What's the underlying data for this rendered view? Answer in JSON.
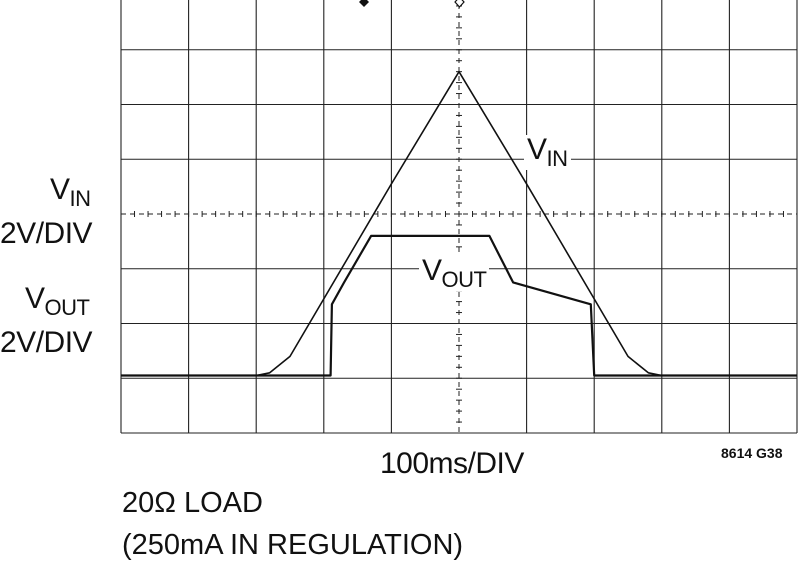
{
  "chart_data": {
    "type": "line",
    "kind": "oscilloscope-trace",
    "grid": {
      "divisions_x": 10,
      "divisions_y": 8,
      "on": true
    },
    "x_axis": {
      "label": "100ms/DIV",
      "unit": "ms",
      "per_div": 100,
      "range": [
        0,
        1000
      ]
    },
    "channels": [
      {
        "name_main": "V",
        "name_sub": "IN",
        "scale": "2V/DIV",
        "ground_div_from_top": 6.95
      },
      {
        "name_main": "V",
        "name_sub": "OUT",
        "scale": "2V/DIV",
        "ground_div_from_top": 6.95
      }
    ],
    "series": [
      {
        "name_main": "V",
        "name_sub": "IN",
        "x_ms": [
          0,
          200,
          220,
          250,
          300,
          350,
          400,
          500,
          600,
          650,
          700,
          750,
          780,
          800,
          1000
        ],
        "y_div": [
          0,
          0,
          0.05,
          0.35,
          1.4,
          2.45,
          3.5,
          5.55,
          3.5,
          2.45,
          1.4,
          0.35,
          0.05,
          0,
          0
        ]
      },
      {
        "name_main": "V",
        "name_sub": "OUT",
        "x_ms": [
          0,
          310,
          312,
          330,
          370,
          545,
          580,
          695,
          700,
          1000
        ],
        "y_div": [
          0,
          0,
          1.3,
          1.7,
          2.55,
          2.55,
          1.7,
          1.3,
          0,
          0
        ]
      }
    ],
    "trace_labels": [
      {
        "series": 0,
        "main": "V",
        "sub": "IN"
      },
      {
        "series": 1,
        "main": "V",
        "sub": "OUT"
      }
    ]
  },
  "figure_code": "8614 G38",
  "notes": {
    "line1": "20Ω LOAD",
    "line2": "(250mA IN REGULATION)"
  }
}
